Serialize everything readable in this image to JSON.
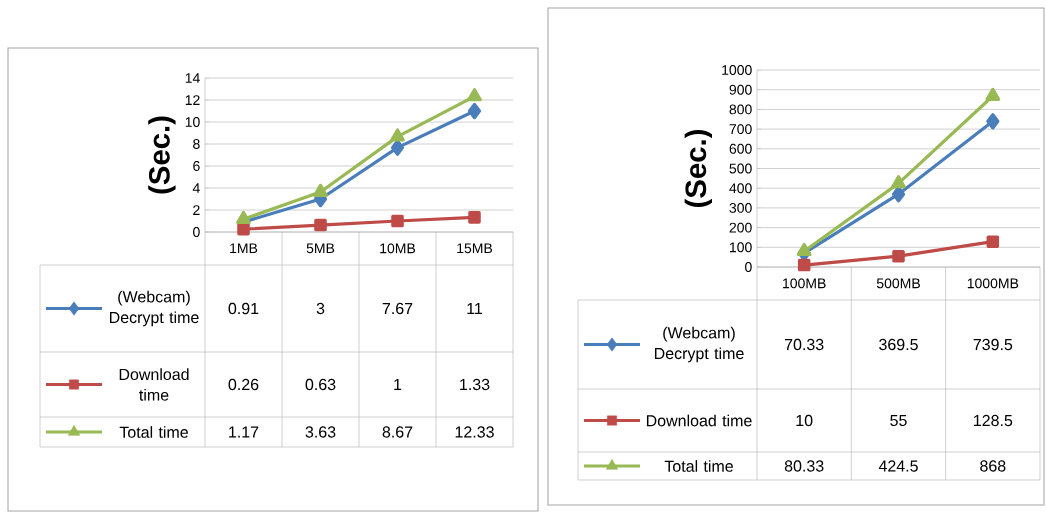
{
  "chart_data": [
    {
      "type": "line",
      "ylabel": "(Sec.)",
      "categories": [
        "1MB",
        "5MB",
        "10MB",
        "15MB"
      ],
      "ylim": [
        0,
        14
      ],
      "yticks": [
        0,
        2,
        4,
        6,
        8,
        10,
        12,
        14
      ],
      "grid": "y",
      "legend": "bottom",
      "data_labels": true,
      "series": [
        {
          "name": "(Webcam) Decrypt time",
          "color": "#4a7ebb",
          "marker": "diamond",
          "values": [
            0.91,
            3,
            7.67,
            11
          ]
        },
        {
          "name": "Download time",
          "color": "#be4b48",
          "marker": "square",
          "values": [
            0.26,
            0.63,
            1,
            1.33
          ]
        },
        {
          "name": "Total time",
          "color": "#98b954",
          "marker": "triangle",
          "values": [
            1.17,
            3.63,
            8.67,
            12.33
          ]
        }
      ]
    },
    {
      "type": "line",
      "ylabel": "(Sec.)",
      "categories": [
        "100MB",
        "500MB",
        "1000MB"
      ],
      "ylim": [
        0,
        1000
      ],
      "yticks": [
        0,
        100,
        200,
        300,
        400,
        500,
        600,
        700,
        800,
        900,
        1000
      ],
      "grid": "y",
      "legend": "bottom",
      "data_labels": true,
      "series": [
        {
          "name": "(Webcam) Decrypt time",
          "color": "#4a7ebb",
          "marker": "diamond",
          "values": [
            70.33,
            369.5,
            739.5
          ]
        },
        {
          "name": "Download time",
          "color": "#be4b48",
          "marker": "square",
          "values": [
            10,
            55,
            128.5
          ]
        },
        {
          "name": "Total time",
          "color": "#98b954",
          "marker": "triangle",
          "values": [
            80.33,
            424.5,
            868
          ]
        }
      ]
    }
  ]
}
